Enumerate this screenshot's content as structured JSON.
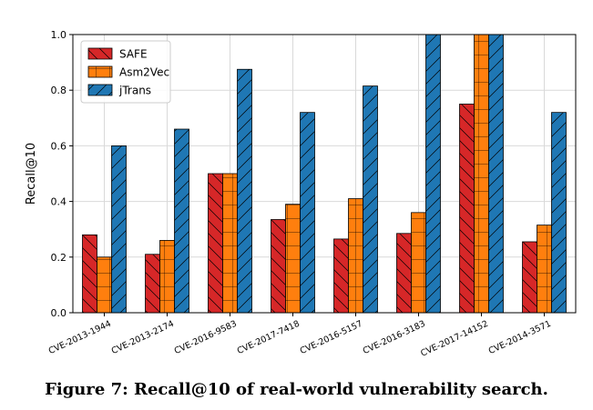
{
  "chart_data": {
    "type": "bar",
    "caption": "Figure 7: Recall@10 of real-world vulnerability search.",
    "ylabel": "Recall@10",
    "xlabel": "",
    "ylim": [
      0,
      1.0
    ],
    "yticks": [
      "0.0",
      "0.2",
      "0.4",
      "0.6",
      "0.8",
      "1.0"
    ],
    "grid": true,
    "legend_position": "top-left",
    "categories": [
      "CVE-2013-1944",
      "CVE-2013-2174",
      "CVE-2016-9583",
      "CVE-2017-7418",
      "CVE-2016-5157",
      "CVE-2016-3183",
      "CVE-2017-14152",
      "CVE-2014-3571"
    ],
    "series": [
      {
        "name": "SAFE",
        "color": "#d62728",
        "hatch": "backslash",
        "values": [
          0.28,
          0.21,
          0.5,
          0.335,
          0.265,
          0.285,
          0.75,
          0.255
        ]
      },
      {
        "name": "Asm2Vec",
        "color": "#ff7f0e",
        "hatch": "grid",
        "values": [
          0.2,
          0.26,
          0.5,
          0.39,
          0.41,
          0.36,
          1.0,
          0.315
        ]
      },
      {
        "name": "jTrans",
        "color": "#1f77b4",
        "hatch": "slash",
        "values": [
          0.6,
          0.66,
          0.875,
          0.72,
          0.815,
          1.0,
          1.0,
          0.72
        ]
      }
    ]
  }
}
